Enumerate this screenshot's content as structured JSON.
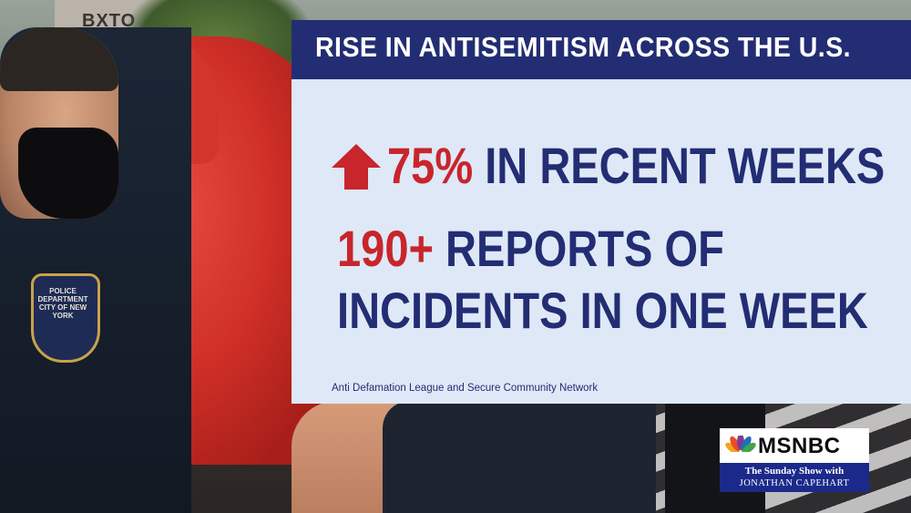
{
  "background": {
    "storefront_sign": "BXTO",
    "patch_text": "POLICE DEPARTMENT CITY OF NEW YORK"
  },
  "graphic": {
    "title": "RISE IN ANTISEMITISM ACROSS THE U.S.",
    "stat1": {
      "icon": "up-arrow-icon",
      "value": "75%",
      "label": "IN RECENT WEEKS"
    },
    "stat2": {
      "value": "190+",
      "label_line1": "REPORTS OF",
      "label_line2": "INCIDENTS IN ONE WEEK"
    },
    "source": "Anti Defamation League and Secure Community Network",
    "colors": {
      "navy": "#232d73",
      "red": "#c8252c",
      "panel": "#dfe8f6"
    }
  },
  "network_bug": {
    "logo": "MSNBC",
    "icon": "peacock-icon",
    "show": "The Sunday Show with",
    "host": "JONATHAN CAPEHART"
  }
}
